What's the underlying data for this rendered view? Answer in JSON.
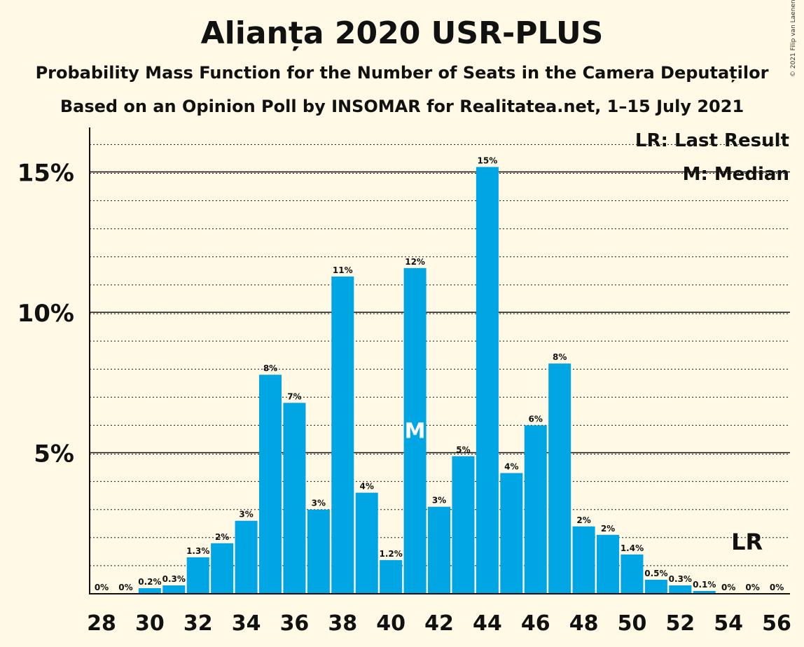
{
  "header": {
    "title": "Alianța 2020 USR-PLUS",
    "subtitle_1": "Probability Mass Function for the Number of Seats in the Camera Deputaților",
    "subtitle_2": "Based on an Opinion Poll by INSOMAR for Realitatea.net, 1–15 July 2021",
    "copyright": "© 2021 Filip van Laenen"
  },
  "chart_data": {
    "type": "bar",
    "x": [
      28,
      29,
      30,
      31,
      32,
      33,
      34,
      35,
      36,
      37,
      38,
      39,
      40,
      41,
      42,
      43,
      44,
      45,
      46,
      47,
      48,
      49,
      50,
      51,
      52,
      53,
      54,
      55,
      56
    ],
    "values": [
      0,
      0,
      0.2,
      0.3,
      1.3,
      1.8,
      2.6,
      7.8,
      6.8,
      3.0,
      11.3,
      3.6,
      1.2,
      11.6,
      3.1,
      4.9,
      15.2,
      4.3,
      6.0,
      8.2,
      2.4,
      2.1,
      1.4,
      0.5,
      0.3,
      0.1,
      0,
      0,
      0
    ],
    "labels": [
      "0%",
      "0%",
      "0.2%",
      "0.3%",
      "1.3%",
      "2%",
      "3%",
      "8%",
      "7%",
      "3%",
      "11%",
      "4%",
      "1.2%",
      "12%",
      "3%",
      "5%",
      "15%",
      "4%",
      "6%",
      "8%",
      "2%",
      "2%",
      "1.4%",
      "0.5%",
      "0.3%",
      "0.1%",
      "0%",
      "0%",
      "0%"
    ],
    "x_tick_labels": [
      "28",
      "30",
      "32",
      "34",
      "36",
      "38",
      "40",
      "42",
      "44",
      "46",
      "48",
      "50",
      "52",
      "54",
      "56"
    ],
    "y_tick_labels": [
      "5%",
      "10%",
      "15%"
    ],
    "y_ticks": [
      5,
      10,
      15
    ],
    "ylim": [
      0,
      16.5
    ],
    "bar_color": "#00a6e3",
    "median_seat": 41,
    "median_marker": "M",
    "last_result_seat": 55,
    "last_result_marker": "LR",
    "legend": [
      "LR: Last Result",
      "M: Median"
    ],
    "grid": true
  }
}
